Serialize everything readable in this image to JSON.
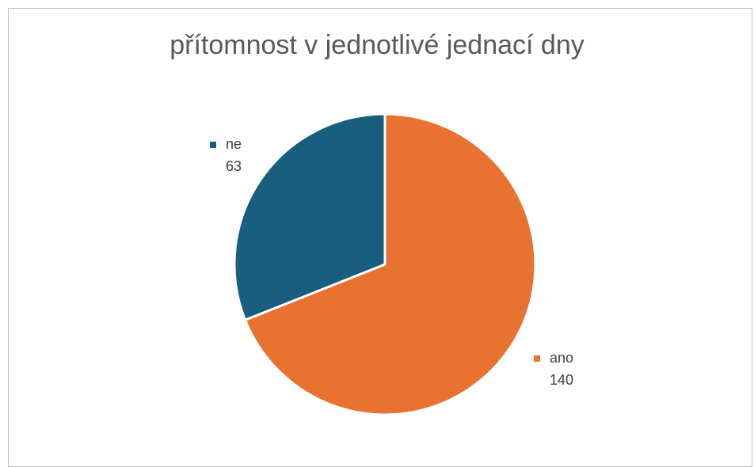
{
  "chart_data": {
    "type": "pie",
    "title": "přítomnost v jednotlivé jednací dny",
    "slices": [
      {
        "label": "ne",
        "value": 63,
        "color": "#175e7f"
      },
      {
        "label": "ano",
        "value": 140,
        "color": "#e87331"
      }
    ],
    "legend": "none",
    "data_labels": "label and value beside each slice"
  }
}
